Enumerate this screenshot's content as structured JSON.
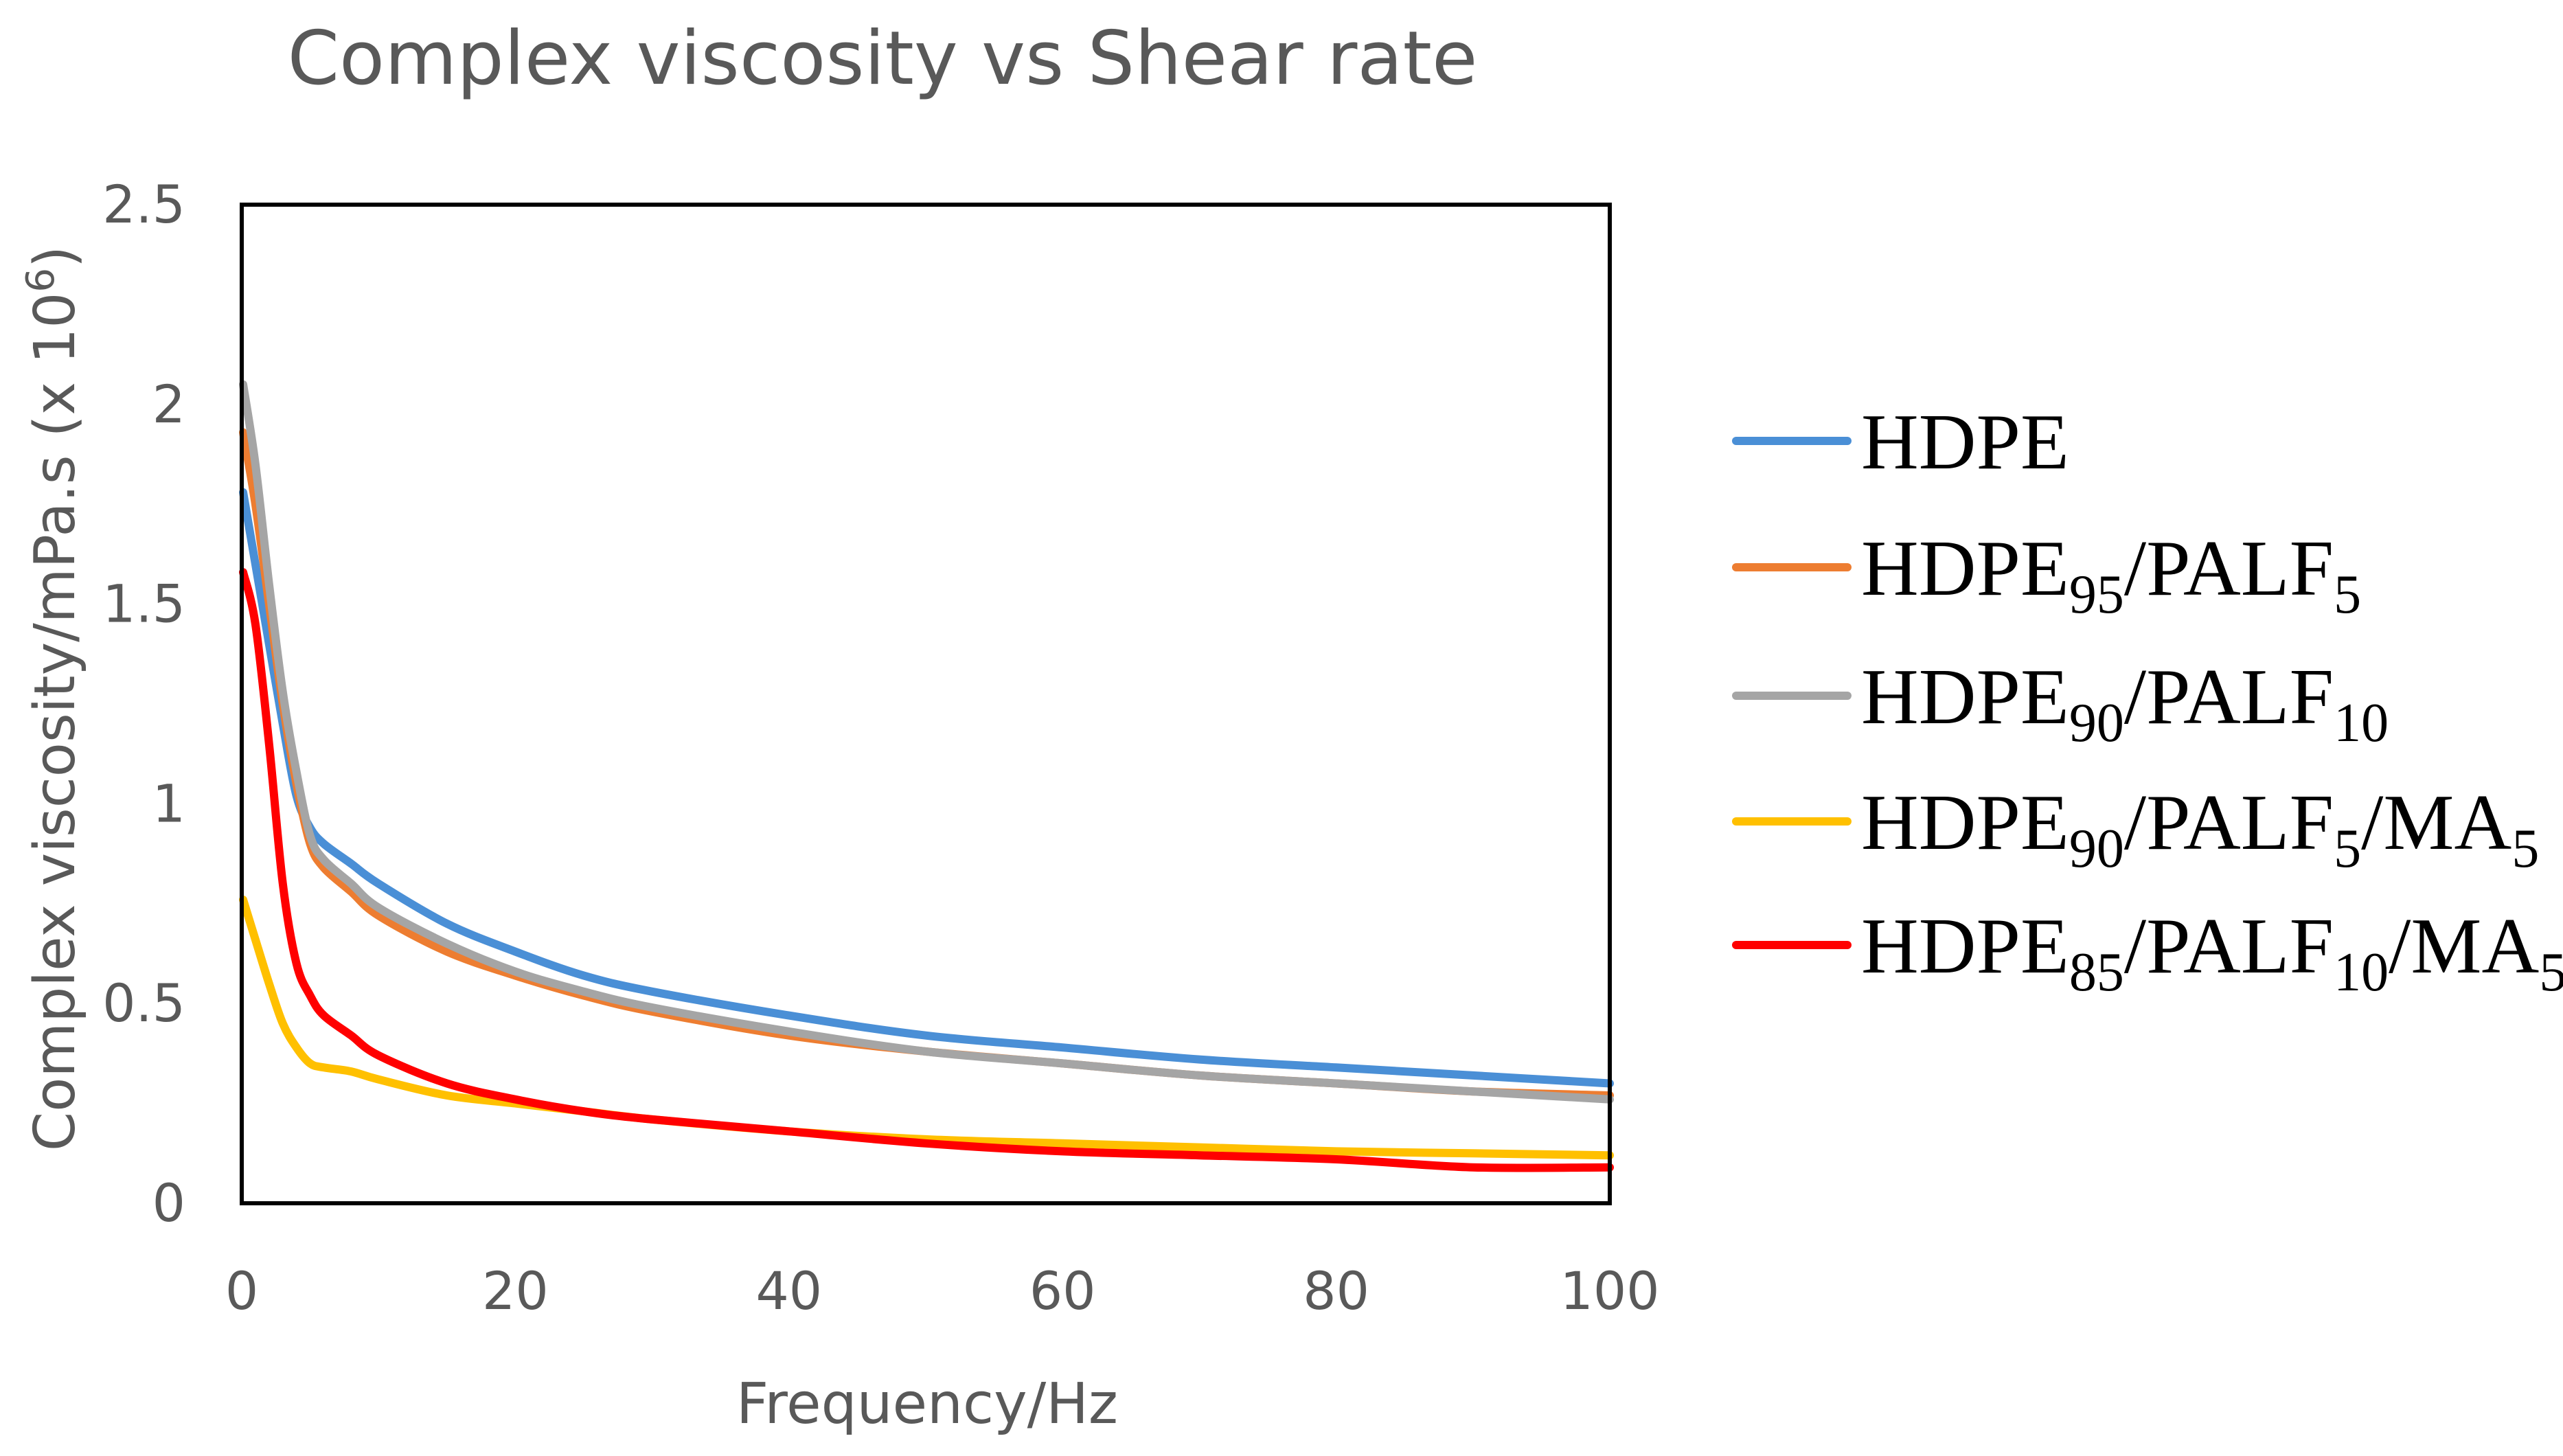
{
  "chart_data": {
    "type": "line",
    "title": "Complex viscosity vs Shear rate",
    "xlabel": "Frequency/Hz",
    "ylabel": {
      "text": "Complex viscosity/mPa.s (x 10",
      "superscript": "6",
      "suffix": ")"
    },
    "xlim": [
      0,
      100
    ],
    "ylim": [
      0,
      2.5
    ],
    "x_ticks": [
      0,
      20,
      40,
      60,
      80,
      100
    ],
    "y_ticks": [
      0,
      0.5,
      1,
      1.5,
      2,
      2.5
    ],
    "x_tick_labels": [
      "0",
      "20",
      "40",
      "60",
      "80",
      "100"
    ],
    "y_tick_labels": [
      "0",
      "0.5",
      "1",
      "1.5",
      "2",
      "2.5"
    ],
    "grid": false,
    "legend_position": "right",
    "x": [
      0.1,
      1,
      2,
      3,
      4,
      5,
      6,
      8,
      10,
      15,
      20,
      25,
      30,
      40,
      50,
      60,
      70,
      80,
      90,
      100
    ],
    "series": [
      {
        "name": "HDPE",
        "legend": [
          {
            "t": "HDPE"
          }
        ],
        "color": "#4a8fd6",
        "values": [
          1.78,
          1.6,
          1.4,
          1.2,
          1.02,
          0.94,
          0.9,
          0.85,
          0.8,
          0.7,
          0.63,
          0.57,
          0.53,
          0.47,
          0.42,
          0.39,
          0.36,
          0.34,
          0.32,
          0.3
        ]
      },
      {
        "name": "HDPE95/PALF5",
        "legend": [
          {
            "t": "HDPE"
          },
          {
            "t": "95",
            "sub": true
          },
          {
            "t": "/PALF"
          },
          {
            "t": "5",
            "sub": true
          }
        ],
        "color": "#ed7d31",
        "values": [
          1.93,
          1.75,
          1.5,
          1.25,
          1.05,
          0.9,
          0.84,
          0.78,
          0.72,
          0.63,
          0.57,
          0.52,
          0.48,
          0.42,
          0.38,
          0.35,
          0.32,
          0.3,
          0.28,
          0.27
        ]
      },
      {
        "name": "HDPE90/PALF10",
        "legend": [
          {
            "t": "HDPE"
          },
          {
            "t": "90",
            "sub": true
          },
          {
            "t": "/PALF"
          },
          {
            "t": "10",
            "sub": true
          }
        ],
        "color": "#a5a5a5",
        "values": [
          2.05,
          1.85,
          1.55,
          1.28,
          1.08,
          0.92,
          0.86,
          0.8,
          0.74,
          0.65,
          0.58,
          0.53,
          0.49,
          0.43,
          0.38,
          0.35,
          0.32,
          0.3,
          0.28,
          0.26
        ]
      },
      {
        "name": "HDPE90/PALF5/MA5",
        "legend": [
          {
            "t": "HDPE"
          },
          {
            "t": "90",
            "sub": true
          },
          {
            "t": "/PALF"
          },
          {
            "t": "5",
            "sub": true
          },
          {
            "t": "/MA"
          },
          {
            "t": "5",
            "sub": true
          }
        ],
        "color": "#ffc000",
        "values": [
          0.76,
          0.66,
          0.55,
          0.45,
          0.39,
          0.35,
          0.34,
          0.33,
          0.31,
          0.27,
          0.25,
          0.23,
          0.21,
          0.18,
          0.16,
          0.15,
          0.14,
          0.13,
          0.125,
          0.12
        ]
      },
      {
        "name": "HDPE85/PALF10/MA5",
        "legend": [
          {
            "t": "HDPE"
          },
          {
            "t": "85",
            "sub": true
          },
          {
            "t": "/PALF"
          },
          {
            "t": "10",
            "sub": true
          },
          {
            "t": "/MA"
          },
          {
            "t": "5",
            "sub": true
          }
        ],
        "color": "#ff0000",
        "values": [
          1.58,
          1.45,
          1.15,
          0.8,
          0.6,
          0.52,
          0.47,
          0.42,
          0.37,
          0.3,
          0.26,
          0.23,
          0.21,
          0.18,
          0.15,
          0.13,
          0.12,
          0.11,
          0.09,
          0.09
        ]
      }
    ]
  }
}
